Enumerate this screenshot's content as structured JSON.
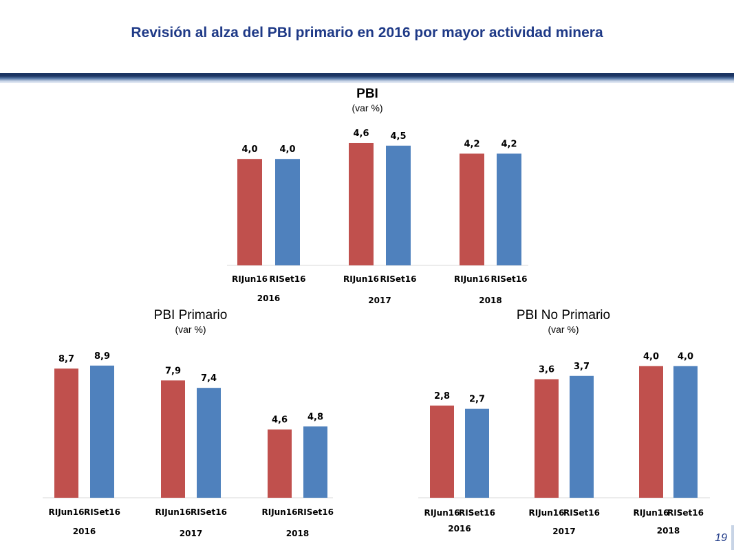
{
  "slide": {
    "title": "Revisión al alza del PBI primario en 2016 por mayor actividad minera",
    "page_number": "19"
  },
  "colors": {
    "RIJun16": "#c0504d",
    "RISet16": "#4f81bd",
    "axis": "#d9d9d9"
  },
  "chart_data": [
    {
      "type": "bar",
      "title": "PBI",
      "subtitle": "(var %)",
      "categories": [
        "2016",
        "2017",
        "2018"
      ],
      "series_labels": [
        "RIJun16",
        "RISet16"
      ],
      "series": [
        {
          "values": [
            4.0,
            4.6,
            4.2
          ],
          "labels": [
            "4,0",
            "4,6",
            "4,2"
          ]
        },
        {
          "values": [
            4.0,
            4.5,
            4.2
          ],
          "labels": [
            "4,0",
            "4,5",
            "4,2"
          ]
        }
      ]
    },
    {
      "type": "bar",
      "title": "PBI Primario",
      "subtitle": "(var %)",
      "categories": [
        "2016",
        "2017",
        "2018"
      ],
      "series_labels": [
        "RIJun16",
        "RISet16"
      ],
      "series": [
        {
          "values": [
            8.7,
            7.9,
            4.6
          ],
          "labels": [
            "8,7",
            "7,9",
            "4,6"
          ]
        },
        {
          "values": [
            8.9,
            7.4,
            4.8
          ],
          "labels": [
            "8,9",
            "7,4",
            "4,8"
          ]
        }
      ]
    },
    {
      "type": "bar",
      "title": "PBI No Primario",
      "subtitle": "(var %)",
      "categories": [
        "2016",
        "2017",
        "2018"
      ],
      "series_labels": [
        "RIJun16",
        "RISet16"
      ],
      "series": [
        {
          "values": [
            2.8,
            3.6,
            4.0
          ],
          "labels": [
            "2,8",
            "3,6",
            "4,0"
          ]
        },
        {
          "values": [
            2.7,
            3.7,
            4.0
          ],
          "labels": [
            "2,7",
            "3,7",
            "4,0"
          ]
        }
      ]
    }
  ]
}
